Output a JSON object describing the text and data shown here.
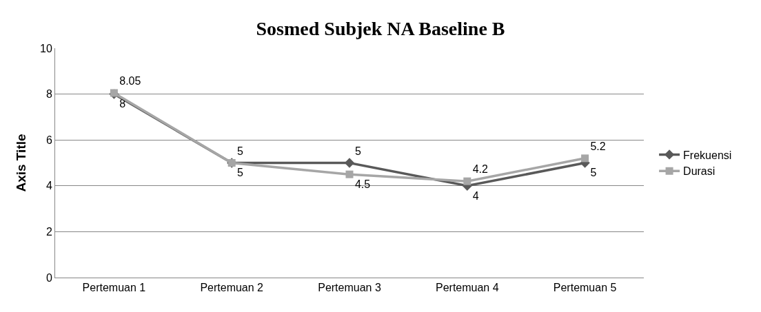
{
  "chart_data": {
    "type": "line",
    "title": "Sosmed Subjek NA Baseline B",
    "ylabel": "Axis Title",
    "categories": [
      "Pertemuan 1",
      "Pertemuan 2",
      "Pertemuan 3",
      "Pertemuan 4",
      "Pertemuan 5"
    ],
    "series": [
      {
        "name": "Frekuensi",
        "color": "#595959",
        "marker": "diamond",
        "values": [
          8,
          5,
          5,
          4,
          5
        ]
      },
      {
        "name": "Durasi",
        "color": "#a6a6a6",
        "marker": "square",
        "values": [
          8.05,
          5,
          4.5,
          4.2,
          5.2
        ]
      }
    ],
    "ylim": [
      0,
      10
    ],
    "yticks": [
      0,
      2,
      4,
      6,
      8,
      10
    ],
    "grid": "y",
    "legend": "right",
    "data_labels": true,
    "line_style": "solid"
  }
}
